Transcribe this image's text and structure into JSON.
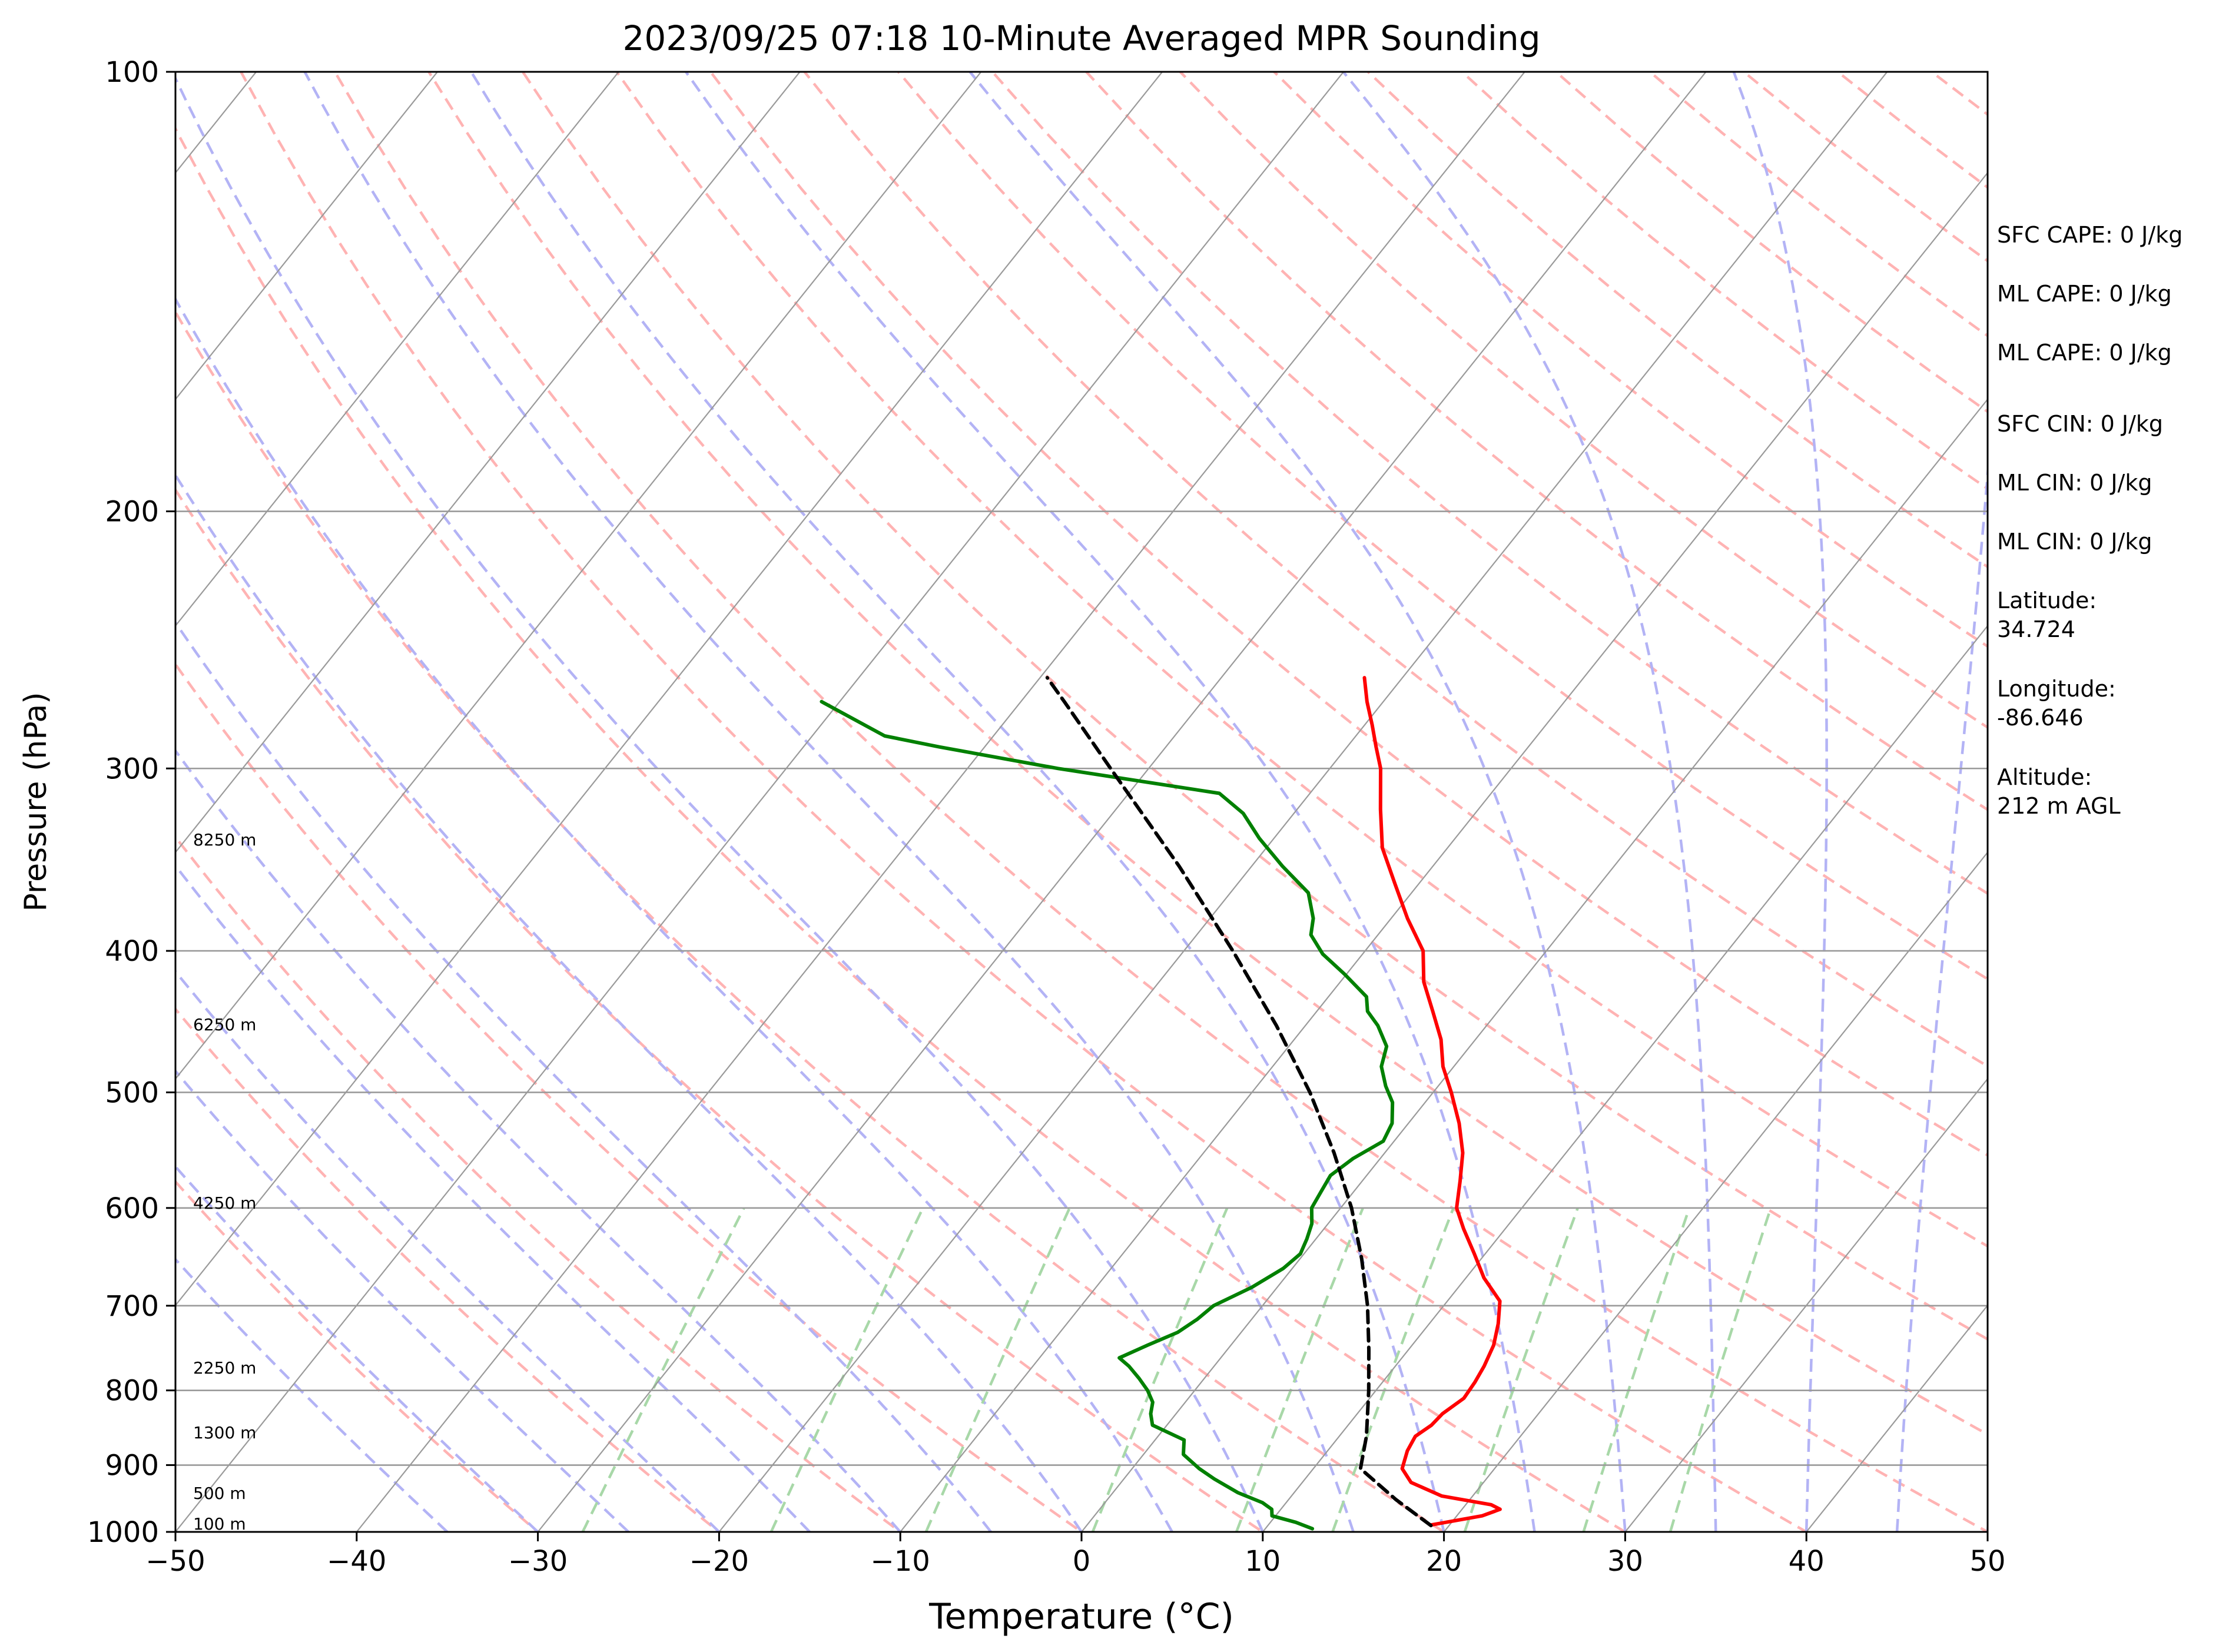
{
  "chart_data": {
    "type": "line",
    "title": "2023/09/25 07:18 10-Minute Averaged MPR Sounding",
    "xlabel": "Temperature (°C)",
    "ylabel": "Pressure (hPa)",
    "xlim": [
      -50,
      50
    ],
    "ylim": [
      1000,
      100
    ],
    "y_scale": "log",
    "skew": true,
    "xticks": [
      "−50",
      "−40",
      "−30",
      "−20",
      "−10",
      "0",
      "10",
      "20",
      "30",
      "40",
      "50"
    ],
    "yticks": [
      {
        "p": 100,
        "label": "100"
      },
      {
        "p": 200,
        "label": "200"
      },
      {
        "p": 300,
        "label": "300"
      },
      {
        "p": 400,
        "label": "400"
      },
      {
        "p": 500,
        "label": "500"
      },
      {
        "p": 600,
        "label": "600"
      },
      {
        "p": 700,
        "label": "700"
      },
      {
        "p": 800,
        "label": "800"
      },
      {
        "p": 900,
        "label": "900"
      },
      {
        "p": 1000,
        "label": "1000"
      }
    ],
    "colors": {
      "temperature": "#ff0000",
      "dewpoint": "#008000",
      "parcel": "#000000",
      "dry_adiabats": "#ffb3b3",
      "moist_adiabats": "#b3b3f5",
      "mixing_ratio": "#a8d8a8",
      "isotherms": "#9a9a9a",
      "isobars": "#9a9a9a"
    },
    "series": [
      {
        "key": "temperature",
        "points": [
          [
            989,
            19.0
          ],
          [
            975,
            21.4
          ],
          [
            965,
            22.1
          ],
          [
            958,
            21.4
          ],
          [
            945,
            18.3
          ],
          [
            925,
            16.0
          ],
          [
            905,
            14.9
          ],
          [
            880,
            14.4
          ],
          [
            860,
            14.2
          ],
          [
            845,
            14.6
          ],
          [
            830,
            14.7
          ],
          [
            810,
            15.2
          ],
          [
            790,
            15.1
          ],
          [
            770,
            14.9
          ],
          [
            745,
            14.5
          ],
          [
            720,
            13.8
          ],
          [
            695,
            12.9
          ],
          [
            670,
            11.0
          ],
          [
            645,
            9.4
          ],
          [
            620,
            7.7
          ],
          [
            600,
            6.4
          ],
          [
            575,
            5.4
          ],
          [
            550,
            4.3
          ],
          [
            525,
            2.8
          ],
          [
            500,
            1.0
          ],
          [
            480,
            -0.6
          ],
          [
            460,
            -1.9
          ],
          [
            440,
            -3.6
          ],
          [
            420,
            -5.4
          ],
          [
            400,
            -6.8
          ],
          [
            380,
            -9.1
          ],
          [
            360,
            -11.3
          ],
          [
            340,
            -13.6
          ],
          [
            320,
            -15.4
          ],
          [
            300,
            -17.2
          ],
          [
            290,
            -18.4
          ],
          [
            280,
            -19.6
          ],
          [
            270,
            -20.9
          ],
          [
            260,
            -22.1
          ]
        ]
      },
      {
        "key": "dewpoint",
        "points": [
          [
            995,
            12.6
          ],
          [
            985,
            11.4
          ],
          [
            975,
            9.8
          ],
          [
            965,
            9.5
          ],
          [
            955,
            8.7
          ],
          [
            940,
            6.9
          ],
          [
            920,
            5.0
          ],
          [
            905,
            3.7
          ],
          [
            885,
            2.2
          ],
          [
            865,
            1.6
          ],
          [
            845,
            -0.8
          ],
          [
            830,
            -1.4
          ],
          [
            815,
            -1.8
          ],
          [
            800,
            -2.6
          ],
          [
            785,
            -3.6
          ],
          [
            770,
            -4.7
          ],
          [
            760,
            -5.6
          ],
          [
            745,
            -4.6
          ],
          [
            730,
            -3.5
          ],
          [
            715,
            -3.0
          ],
          [
            700,
            -2.7
          ],
          [
            680,
            -1.4
          ],
          [
            660,
            -0.5
          ],
          [
            645,
            -0.2
          ],
          [
            630,
            -0.5
          ],
          [
            615,
            -0.9
          ],
          [
            600,
            -1.6
          ],
          [
            585,
            -1.8
          ],
          [
            570,
            -2.0
          ],
          [
            555,
            -1.5
          ],
          [
            540,
            -0.6
          ],
          [
            525,
            -0.9
          ],
          [
            508,
            -1.8
          ],
          [
            495,
            -2.9
          ],
          [
            480,
            -4.0
          ],
          [
            465,
            -4.6
          ],
          [
            450,
            -6.0
          ],
          [
            440,
            -7.2
          ],
          [
            430,
            -7.9
          ],
          [
            415,
            -10.1
          ],
          [
            402,
            -12.2
          ],
          [
            390,
            -13.7
          ],
          [
            380,
            -14.3
          ],
          [
            365,
            -15.7
          ],
          [
            350,
            -18.3
          ],
          [
            335,
            -20.8
          ],
          [
            322,
            -22.8
          ],
          [
            312,
            -25.0
          ],
          [
            300,
            -35.0
          ],
          [
            290,
            -42.5
          ],
          [
            285,
            -46.0
          ],
          [
            270,
            -51.0
          ]
        ]
      },
      {
        "key": "parcel",
        "points": [
          [
            990,
            19.0
          ],
          [
            950,
            15.9
          ],
          [
            905,
            12.6
          ],
          [
            860,
            11.5
          ],
          [
            800,
            9.6
          ],
          [
            750,
            7.8
          ],
          [
            700,
            5.8
          ],
          [
            650,
            3.4
          ],
          [
            600,
            0.6
          ],
          [
            550,
            -2.8
          ],
          [
            500,
            -6.8
          ],
          [
            450,
            -11.6
          ],
          [
            400,
            -17.3
          ],
          [
            350,
            -24.0
          ],
          [
            300,
            -32.1
          ],
          [
            270,
            -37.6
          ],
          [
            260,
            -39.6
          ]
        ]
      }
    ],
    "height_labels": [
      {
        "p": 1000,
        "text": "100 m"
      },
      {
        "p": 953,
        "text": "500 m"
      },
      {
        "p": 866,
        "text": "1300 m"
      },
      {
        "p": 782,
        "text": "2250 m"
      },
      {
        "p": 603,
        "text": "4250 m"
      },
      {
        "p": 455,
        "text": "6250 m"
      },
      {
        "p": 340,
        "text": "8250 m"
      }
    ],
    "stats": [
      {
        "label": "SFC CAPE: 0 J/kg"
      },
      {
        "label": "ML CAPE: 0 J/kg"
      },
      {
        "label": "ML CAPE: 0 J/kg"
      },
      {
        "label": "SFC CIN: 0 J/kg"
      },
      {
        "label": "ML CIN: 0 J/kg"
      },
      {
        "label": "ML CIN: 0 J/kg"
      },
      {
        "lines": [
          "Latitude:",
          "34.724"
        ]
      },
      {
        "lines": [
          "Longitude:",
          "-86.646"
        ]
      },
      {
        "lines": [
          "Altitude:",
          "212 m AGL"
        ]
      }
    ],
    "legend": "none",
    "grid": true
  }
}
